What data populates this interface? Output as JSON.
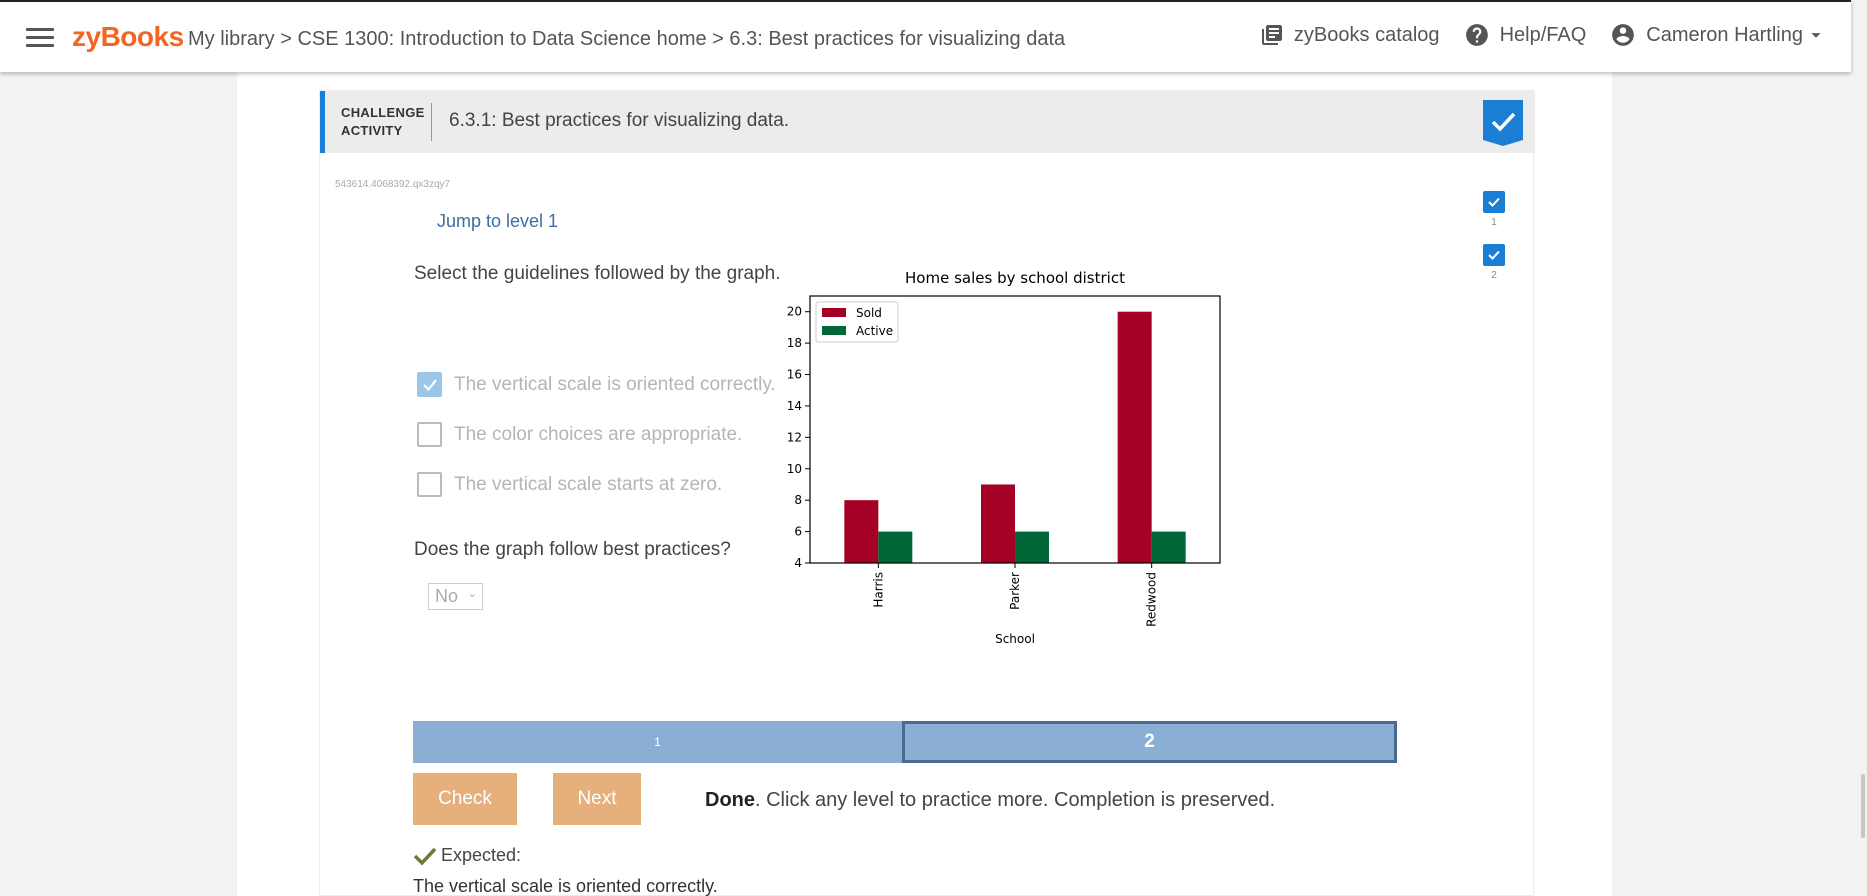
{
  "topbar": {
    "logo": "zyBooks",
    "breadcrumb": {
      "library": "My library",
      "sep1": " > ",
      "course": "CSE 1300: Introduction to Data Science home",
      "sep2": " > ",
      "section": "6.3: Best practices for visualizing data"
    },
    "catalog": "zyBooks catalog",
    "help": "Help/FAQ",
    "user": "Cameron Hartling"
  },
  "activity": {
    "label_line1": "CHALLENGE",
    "label_line2": "ACTIVITY",
    "title": "6.3.1: Best practices for visualizing data.",
    "id": "543614.4068392.qx3zqy7",
    "jump": "Jump to level 1",
    "levels": [
      {
        "num": "1"
      },
      {
        "num": "2"
      }
    ],
    "prompt": "Select the guidelines followed by the graph.",
    "options": [
      {
        "label": "The vertical scale is oriented correctly.",
        "checked": true
      },
      {
        "label": "The color choices are appropriate.",
        "checked": false
      },
      {
        "label": "The vertical scale starts at zero.",
        "checked": false
      }
    ],
    "question": "Does the graph follow best practices?",
    "select_value": "No",
    "levelbar": [
      "1",
      "2"
    ],
    "check_label": "Check",
    "next_label": "Next",
    "done_bold": "Done",
    "done_rest": ". Click any level to practice more. Completion is preserved.",
    "expected_label": "Expected:",
    "expected_answer": "The vertical scale is oriented correctly."
  },
  "chart_data": {
    "type": "bar",
    "title": "Home sales by school district",
    "xlabel": "School",
    "ylabel": "",
    "categories": [
      "Harris",
      "Parker",
      "Redwood"
    ],
    "series": [
      {
        "name": "Sold",
        "values": [
          8,
          9,
          20
        ],
        "color": "#a50026"
      },
      {
        "name": "Active",
        "values": [
          6,
          6,
          6
        ],
        "color": "#006837"
      }
    ],
    "ylim": [
      4,
      21
    ],
    "yticks": [
      4,
      6,
      8,
      10,
      12,
      14,
      16,
      18,
      20
    ],
    "legend": "top-left",
    "grid": false
  }
}
